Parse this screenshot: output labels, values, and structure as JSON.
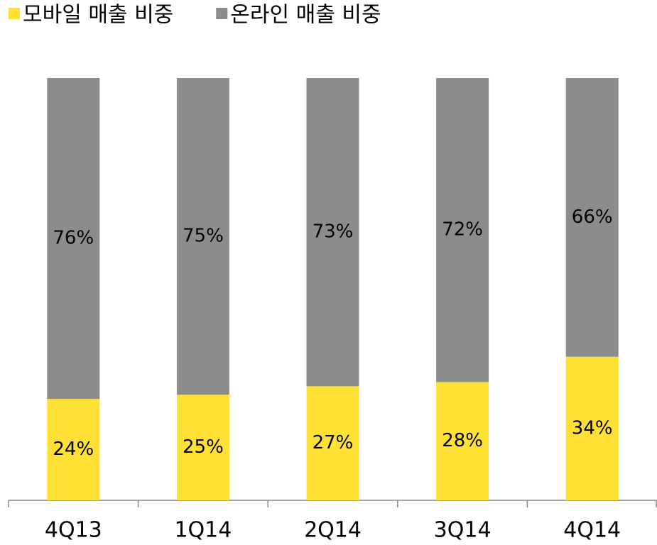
{
  "chart_data": {
    "type": "stacked_bar",
    "categories": [
      "4Q13",
      "1Q14",
      "2Q14",
      "3Q14",
      "4Q14"
    ],
    "series": [
      {
        "name": "모바일 매출 비중",
        "color": "#ffe135",
        "values": [
          24,
          25,
          27,
          28,
          34
        ]
      },
      {
        "name": "온라인 매출 비중",
        "color": "#8c8c8c",
        "values": [
          76,
          75,
          73,
          72,
          66
        ]
      }
    ],
    "value_labels": [
      [
        "24%",
        "25%",
        "27%",
        "28%",
        "34%"
      ],
      [
        "76%",
        "75%",
        "73%",
        "72%",
        "66%"
      ]
    ],
    "legend": "top-left"
  }
}
